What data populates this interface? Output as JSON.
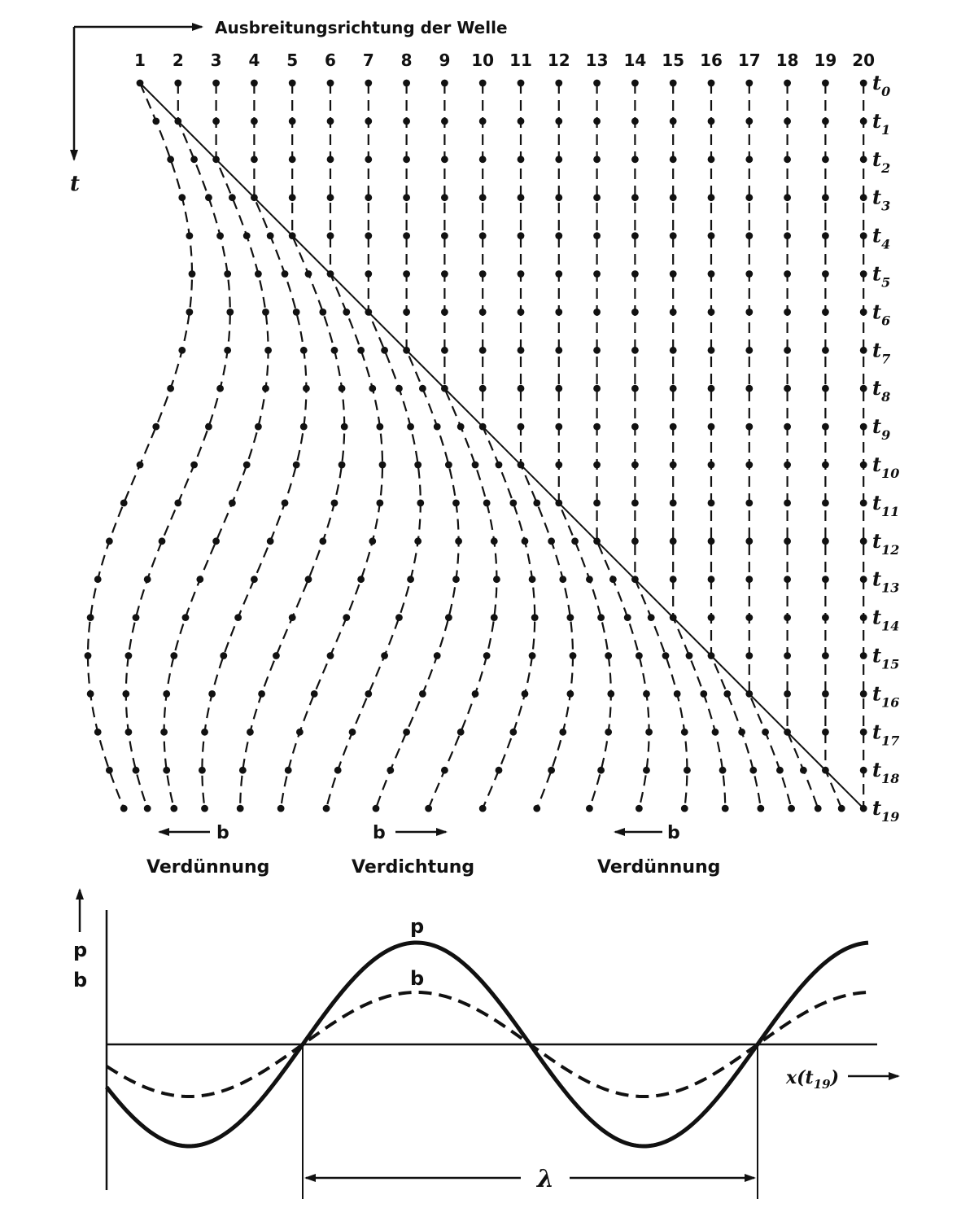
{
  "top_diagram": {
    "direction_label": "Ausbreitungsrichtung der Welle",
    "time_axis_label": "t",
    "particles": [
      "1",
      "2",
      "3",
      "4",
      "5",
      "6",
      "7",
      "8",
      "9",
      "10",
      "11",
      "12",
      "13",
      "14",
      "15",
      "16",
      "17",
      "18",
      "19",
      "20"
    ],
    "time_steps": [
      {
        "base": "t",
        "sub": "0"
      },
      {
        "base": "t",
        "sub": "1"
      },
      {
        "base": "t",
        "sub": "2"
      },
      {
        "base": "t",
        "sub": "3"
      },
      {
        "base": "t",
        "sub": "4"
      },
      {
        "base": "t",
        "sub": "5"
      },
      {
        "base": "t",
        "sub": "6"
      },
      {
        "base": "t",
        "sub": "7"
      },
      {
        "base": "t",
        "sub": "8"
      },
      {
        "base": "t",
        "sub": "9"
      },
      {
        "base": "t",
        "sub": "10"
      },
      {
        "base": "t",
        "sub": "11"
      },
      {
        "base": "t",
        "sub": "12"
      },
      {
        "base": "t",
        "sub": "13"
      },
      {
        "base": "t",
        "sub": "14"
      },
      {
        "base": "t",
        "sub": "15"
      },
      {
        "base": "t",
        "sub": "16"
      },
      {
        "base": "t",
        "sub": "17"
      },
      {
        "base": "t",
        "sub": "18"
      },
      {
        "base": "t",
        "sub": "19"
      }
    ],
    "zones": [
      {
        "velocity_symbol": "b",
        "direction": "left",
        "label": "Verdünnung"
      },
      {
        "velocity_symbol": "b",
        "direction": "right",
        "label": "Verdichtung"
      },
      {
        "velocity_symbol": "b",
        "direction": "left",
        "label": "Verdünnung"
      }
    ]
  },
  "bottom_graph": {
    "y_label_top": "p",
    "y_label_bottom": "b",
    "curve_p_label": "p",
    "curve_b_label": "b",
    "x_label": {
      "base": "x",
      "paren_open": "(t",
      "sub": "19",
      "paren_close": ")"
    },
    "wavelength_label": "λ"
  }
}
